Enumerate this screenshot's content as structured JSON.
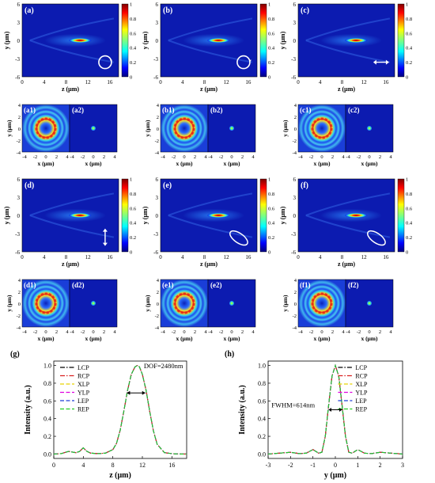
{
  "figure": {
    "heatmap_colorbar": {
      "ticks": [
        "0",
        "0.2",
        "0.4",
        "0.6",
        "0.8",
        "1"
      ],
      "colormap": "jet"
    },
    "zy_panels": [
      {
        "label": "(a)",
        "polarization_icon": "circle-lcp-icon"
      },
      {
        "label": "(b)",
        "polarization_icon": "circle-rcp-icon"
      },
      {
        "label": "(c)",
        "polarization_icon": "horizontal-arrow-icon"
      },
      {
        "label": "(d)",
        "polarization_icon": "vertical-arrow-icon"
      },
      {
        "label": "(e)",
        "polarization_icon": "ellipse-icon"
      },
      {
        "label": "(f)",
        "polarization_icon": "ellipse-icon"
      }
    ],
    "zy_axes": {
      "ylabel": "y (μm)",
      "xlabel": "z (μm)",
      "yticks": [
        "6",
        "3",
        "0",
        "-3",
        "-6"
      ],
      "xticks": [
        "0",
        "4",
        "8",
        "12",
        "16"
      ]
    },
    "xy_pairs": [
      {
        "ring": "(a1)",
        "spot": "(a2)"
      },
      {
        "ring": "(b1)",
        "spot": "(b2)"
      },
      {
        "ring": "(c1)",
        "spot": "(c2)"
      },
      {
        "ring": "(d1)",
        "spot": "(d2)"
      },
      {
        "ring": "(e1)",
        "spot": "(e2)"
      },
      {
        "ring": "(f1)",
        "spot": "(f2)"
      }
    ],
    "xy_axes": {
      "ylabel": "y (μm)",
      "xlabel": "x (μm)",
      "yticks": [
        "4",
        "2",
        "0",
        "-2",
        "-4"
      ],
      "xticks": [
        "-4",
        "-2",
        "0",
        "2",
        "4"
      ]
    }
  },
  "chart_data": [
    {
      "panel": "(g)",
      "type": "line",
      "xlabel": "z (μm)",
      "ylabel": "Intensity (a.u.)",
      "xlim": [
        0,
        18
      ],
      "ylim": [
        -0.05,
        1.05
      ],
      "xticks": [
        "0",
        "4",
        "8",
        "12",
        "16"
      ],
      "yticks": [
        "0.0",
        "0.2",
        "0.4",
        "0.6",
        "0.8",
        "1.0"
      ],
      "annotation": "DOF=2480nm",
      "legend_position": "top-left",
      "x": [
        0,
        1,
        2,
        3,
        3.5,
        4,
        4.5,
        5,
        6,
        7,
        8,
        8.5,
        9,
        9.5,
        10,
        10.5,
        11,
        11.3,
        11.6,
        12,
        12.5,
        13,
        13.5,
        14,
        15,
        16,
        17,
        18
      ],
      "series": [
        {
          "name": "LCP",
          "color": "#000000",
          "dash": "dashdot",
          "values": [
            0.0,
            0.005,
            0.03,
            0.015,
            0.03,
            0.07,
            0.03,
            0.01,
            0.005,
            0.01,
            0.05,
            0.12,
            0.27,
            0.49,
            0.72,
            0.9,
            0.985,
            1.0,
            0.985,
            0.9,
            0.72,
            0.48,
            0.26,
            0.11,
            0.015,
            0.005,
            0.0,
            0.0
          ]
        },
        {
          "name": "RCP",
          "color": "#d92020",
          "dash": "dashdot",
          "values": [
            0.0,
            0.005,
            0.03,
            0.015,
            0.03,
            0.07,
            0.03,
            0.01,
            0.005,
            0.01,
            0.05,
            0.12,
            0.27,
            0.49,
            0.72,
            0.9,
            0.985,
            1.0,
            0.985,
            0.9,
            0.72,
            0.48,
            0.26,
            0.11,
            0.015,
            0.005,
            0.0,
            0.0
          ]
        },
        {
          "name": "XLP",
          "color": "#e6d200",
          "dash": "dash",
          "values": [
            0.0,
            0.005,
            0.03,
            0.015,
            0.03,
            0.07,
            0.03,
            0.01,
            0.005,
            0.01,
            0.05,
            0.12,
            0.27,
            0.49,
            0.72,
            0.9,
            0.985,
            1.0,
            0.985,
            0.9,
            0.72,
            0.48,
            0.26,
            0.11,
            0.015,
            0.005,
            0.0,
            0.0
          ]
        },
        {
          "name": "YLP",
          "color": "#e000e0",
          "dash": "dash",
          "values": [
            0.0,
            0.005,
            0.03,
            0.015,
            0.03,
            0.07,
            0.03,
            0.01,
            0.005,
            0.01,
            0.05,
            0.12,
            0.27,
            0.49,
            0.72,
            0.9,
            0.985,
            1.0,
            0.985,
            0.9,
            0.72,
            0.48,
            0.26,
            0.11,
            0.015,
            0.005,
            0.0,
            0.0
          ]
        },
        {
          "name": "LEP",
          "color": "#1f3fd8",
          "dash": "dash",
          "values": [
            0.0,
            0.005,
            0.03,
            0.015,
            0.03,
            0.07,
            0.03,
            0.01,
            0.005,
            0.01,
            0.05,
            0.12,
            0.27,
            0.49,
            0.72,
            0.9,
            0.985,
            1.0,
            0.985,
            0.9,
            0.72,
            0.48,
            0.26,
            0.11,
            0.015,
            0.005,
            0.0,
            0.0
          ]
        },
        {
          "name": "REP",
          "color": "#22cc22",
          "dash": "dash",
          "values": [
            0.0,
            0.005,
            0.03,
            0.015,
            0.03,
            0.07,
            0.03,
            0.01,
            0.005,
            0.01,
            0.05,
            0.12,
            0.27,
            0.49,
            0.72,
            0.9,
            0.985,
            1.0,
            0.985,
            0.9,
            0.72,
            0.48,
            0.26,
            0.11,
            0.015,
            0.005,
            0.0,
            0.0
          ]
        }
      ]
    },
    {
      "panel": "(h)",
      "type": "line",
      "xlabel": "y (μm)",
      "ylabel": "Intensity (a.u.)",
      "xlim": [
        -3,
        3
      ],
      "ylim": [
        -0.05,
        1.05
      ],
      "xticks": [
        "-3",
        "-2",
        "-1",
        "0",
        "1",
        "2",
        "3"
      ],
      "yticks": [
        "0.0",
        "0.2",
        "0.4",
        "0.6",
        "0.8",
        "1.0"
      ],
      "annotation": "FWHM=614nm",
      "legend_position": "top-right",
      "x": [
        -3,
        -2.5,
        -2,
        -1.6,
        -1.3,
        -1.0,
        -0.75,
        -0.6,
        -0.45,
        -0.3,
        -0.15,
        0,
        0.15,
        0.3,
        0.45,
        0.6,
        0.75,
        1.0,
        1.3,
        1.6,
        2,
        2.5,
        3
      ],
      "series": [
        {
          "name": "LCP",
          "color": "#000000",
          "dash": "dashdot",
          "values": [
            0.0,
            0.01,
            0.02,
            0.005,
            0.01,
            0.05,
            0.01,
            0.02,
            0.2,
            0.55,
            0.88,
            1.0,
            0.88,
            0.55,
            0.2,
            0.02,
            0.01,
            0.05,
            0.01,
            0.005,
            0.02,
            0.01,
            0.0
          ]
        },
        {
          "name": "RCP",
          "color": "#d92020",
          "dash": "dashdot",
          "values": [
            0.0,
            0.01,
            0.02,
            0.005,
            0.01,
            0.05,
            0.01,
            0.02,
            0.2,
            0.55,
            0.88,
            1.0,
            0.88,
            0.55,
            0.2,
            0.02,
            0.01,
            0.05,
            0.01,
            0.005,
            0.02,
            0.01,
            0.0
          ]
        },
        {
          "name": "XLP",
          "color": "#e6d200",
          "dash": "dash",
          "values": [
            0.0,
            0.01,
            0.02,
            0.005,
            0.01,
            0.05,
            0.01,
            0.02,
            0.2,
            0.55,
            0.88,
            1.0,
            0.88,
            0.55,
            0.2,
            0.02,
            0.01,
            0.05,
            0.01,
            0.005,
            0.02,
            0.01,
            0.0
          ]
        },
        {
          "name": "YLP",
          "color": "#e000e0",
          "dash": "dash",
          "values": [
            0.0,
            0.01,
            0.02,
            0.005,
            0.01,
            0.05,
            0.01,
            0.02,
            0.2,
            0.55,
            0.88,
            1.0,
            0.88,
            0.55,
            0.2,
            0.02,
            0.01,
            0.05,
            0.01,
            0.005,
            0.02,
            0.01,
            0.0
          ]
        },
        {
          "name": "LEP",
          "color": "#1f3fd8",
          "dash": "dash",
          "values": [
            0.0,
            0.01,
            0.02,
            0.005,
            0.01,
            0.05,
            0.01,
            0.02,
            0.2,
            0.55,
            0.88,
            1.0,
            0.88,
            0.55,
            0.2,
            0.02,
            0.01,
            0.05,
            0.01,
            0.005,
            0.02,
            0.01,
            0.0
          ]
        },
        {
          "name": "REP",
          "color": "#22cc22",
          "dash": "dash",
          "values": [
            0.0,
            0.01,
            0.02,
            0.005,
            0.01,
            0.05,
            0.01,
            0.02,
            0.2,
            0.55,
            0.88,
            1.0,
            0.88,
            0.55,
            0.2,
            0.02,
            0.01,
            0.05,
            0.01,
            0.005,
            0.02,
            0.01,
            0.0
          ]
        }
      ]
    }
  ]
}
